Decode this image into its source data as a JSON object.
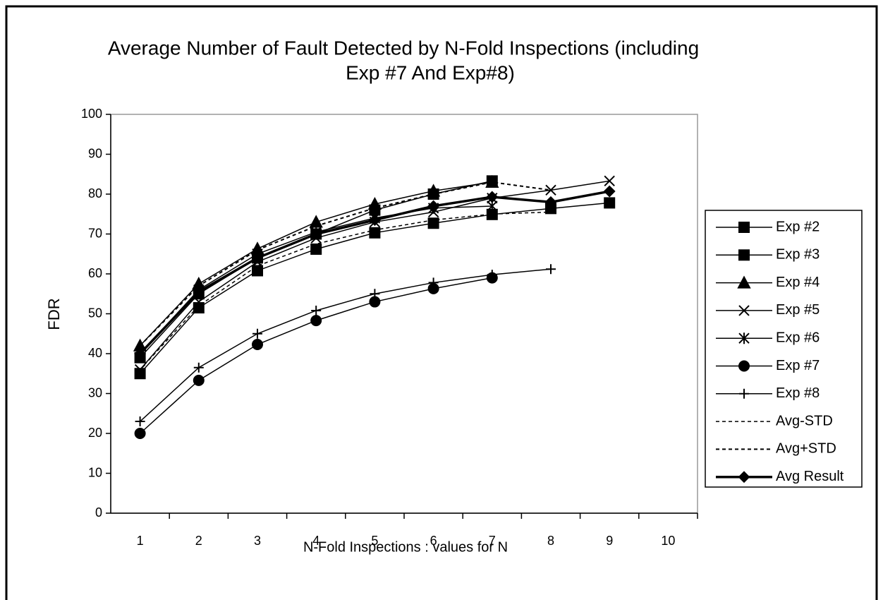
{
  "chart_data": {
    "type": "line",
    "title": [
      "Average Number of Fault Detected by N-Fold Inspections (including",
      "Exp #7 And Exp#8)"
    ],
    "x_label": "N-Fold Inspections : values for N",
    "y_label": "FDR",
    "categories": [
      "1",
      "2",
      "3",
      "4",
      "5",
      "6",
      "7",
      "8",
      "9",
      "10"
    ],
    "ylim": [
      0,
      100
    ],
    "yticks": [
      0,
      10,
      20,
      30,
      40,
      50,
      60,
      70,
      80,
      90,
      100
    ],
    "legend": "right",
    "series": [
      {
        "name": "Exp #2",
        "color": "#000000",
        "marker": "square",
        "dash": "solid",
        "width": 1.5,
        "values": [
          39,
          55,
          64,
          70,
          76,
          80,
          83.3,
          null,
          null,
          null
        ]
      },
      {
        "name": "Exp #3",
        "color": "#000000",
        "marker": "square",
        "dash": "solid",
        "width": 1.5,
        "values": [
          35,
          51.5,
          60.8,
          66.2,
          70.3,
          72.7,
          74.9,
          76.4,
          77.8,
          null
        ]
      },
      {
        "name": "Exp #4",
        "color": "#000000",
        "marker": "triangle",
        "dash": "solid",
        "width": 1.5,
        "values": [
          42,
          57.5,
          66.3,
          73,
          77.5,
          80.8,
          83,
          null,
          null,
          null
        ]
      },
      {
        "name": "Exp #5",
        "color": "#000000",
        "marker": "x",
        "dash": "solid",
        "width": 1.5,
        "values": [
          36,
          53,
          63,
          69,
          73,
          75.5,
          79,
          81,
          83.3,
          null
        ]
      },
      {
        "name": "Exp #6",
        "color": "#000000",
        "marker": "asterisk",
        "dash": "solid",
        "width": 1.5,
        "values": [
          40,
          56,
          65,
          70.5,
          74,
          76.5,
          77,
          null,
          null,
          null
        ]
      },
      {
        "name": "Exp #7",
        "color": "#000000",
        "marker": "circle",
        "dash": "solid",
        "width": 1.5,
        "values": [
          20,
          33.3,
          42.3,
          48.3,
          53,
          56.3,
          59,
          null,
          null,
          null
        ]
      },
      {
        "name": "Exp #8",
        "color": "#000000",
        "marker": "plus",
        "dash": "solid",
        "width": 1.5,
        "values": [
          23,
          36.5,
          45,
          50.8,
          55,
          57.8,
          59.8,
          61.2,
          null,
          null
        ]
      },
      {
        "name": "Avg-STD",
        "color": "#000000",
        "marker": "none",
        "dash": "dotted",
        "width": 1.5,
        "values": [
          36,
          52,
          62,
          67.5,
          71,
          73.5,
          75,
          75.5,
          null,
          null
        ]
      },
      {
        "name": "Avg+STD",
        "color": "#000000",
        "marker": "none",
        "dash": "dotted",
        "width": 2,
        "values": [
          42,
          57,
          66,
          72,
          76.5,
          80,
          83,
          81,
          null,
          null
        ]
      },
      {
        "name": "Avg Result",
        "color": "#000000",
        "marker": "diamond",
        "dash": "solid",
        "width": 3.5,
        "values": [
          40,
          55.5,
          64,
          70,
          73.5,
          77,
          79.3,
          78,
          80.7,
          null
        ]
      }
    ]
  }
}
